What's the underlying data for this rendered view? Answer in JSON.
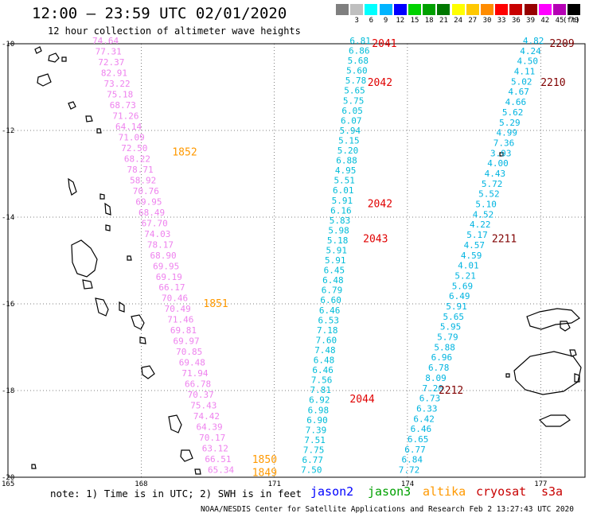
{
  "header": {
    "title": "12:00 – 23:59 UTC 02/01/2020",
    "subtitle": "12 hour collection of altimeter wave heights"
  },
  "legend": {
    "unit": "(ft)",
    "swatches": [
      {
        "label": "",
        "color": "#7f7f7f"
      },
      {
        "label": "3",
        "color": "#bfbfbf"
      },
      {
        "label": "6",
        "color": "#00ffff"
      },
      {
        "label": "9",
        "color": "#00b4ff"
      },
      {
        "label": "12",
        "color": "#0000ff"
      },
      {
        "label": "15",
        "color": "#00d200"
      },
      {
        "label": "18",
        "color": "#00a000"
      },
      {
        "label": "21",
        "color": "#007800"
      },
      {
        "label": "24",
        "color": "#ffff00"
      },
      {
        "label": "27",
        "color": "#ffc800"
      },
      {
        "label": "30",
        "color": "#ff8c00"
      },
      {
        "label": "33",
        "color": "#ff0000"
      },
      {
        "label": "36",
        "color": "#c80000"
      },
      {
        "label": "39",
        "color": "#960000"
      },
      {
        "label": "42",
        "color": "#ff00ff"
      },
      {
        "label": "45",
        "color": "#b400b4"
      },
      {
        "label": "70",
        "color": "#000000"
      }
    ]
  },
  "axes": {
    "lat_labels": [
      "-10",
      "-12",
      "-14",
      "-16",
      "-18",
      "-20"
    ],
    "lon_labels": [
      "165",
      "168",
      "171",
      "174",
      "177"
    ]
  },
  "colors": {
    "altika": "#ee82ee",
    "jason2": "#00bcd8",
    "cryosat": "#00b4e0",
    "time_altika": "#ff9900",
    "time_jason2": "#e00000",
    "time_cryosat": "#800000"
  },
  "tracks": {
    "altika": {
      "times": [
        {
          "t": "1852",
          "lat": -12.5,
          "lon": 168.7
        },
        {
          "t": "1851",
          "lat": -16.0,
          "lon": 169.4
        },
        {
          "t": "1850",
          "lat": -19.6,
          "lon": 170.5
        },
        {
          "t": "1849",
          "lat": -19.9,
          "lon": 170.5
        }
      ],
      "values": [
        "74.64",
        "77.31",
        "72.37",
        "82.91",
        "73.22",
        "75.18",
        "68.73",
        "71.26",
        "64.14",
        "71.09",
        "72.50",
        "68.22",
        "78.71",
        "58.92",
        "70.76",
        "69.95",
        "68.49",
        "67.70",
        "74.03",
        "78.17",
        "68.90",
        "69.95",
        "69.19",
        "66.17",
        "70.46",
        "70.49",
        "71.46",
        "69.81",
        "69.97",
        "70.85",
        "69.48",
        "71.94",
        "66.78",
        "70.37",
        "75.43",
        "74.42",
        "64.39",
        "70.17",
        "63.12",
        "66.51",
        "65.34"
      ]
    },
    "jason2": {
      "times": [
        {
          "t": "2041",
          "lat": -10.0,
          "lon": 173.2
        },
        {
          "t": "2042",
          "lat": -10.9,
          "lon": 173.1
        },
        {
          "t": "2042",
          "lat": -13.7,
          "lon": 173.1
        },
        {
          "t": "2043",
          "lat": -14.5,
          "lon": 173.0
        },
        {
          "t": "2044",
          "lat": -18.2,
          "lon": 172.7
        }
      ],
      "values": [
        "6.81",
        "6.86",
        "5.68",
        "5.60",
        "5.78",
        "5.65",
        "5.75",
        "6.05",
        "6.07",
        "5.94",
        "5.15",
        "5.20",
        "6.88",
        "4.95",
        "5.51",
        "6.01",
        "5.91",
        "6.16",
        "5.83",
        "5.98",
        "5.18",
        "5.91",
        "5.91",
        "6.45",
        "6.48",
        "6.79",
        "6.60",
        "6.46",
        "6.53",
        "7.18",
        "7.60",
        "7.48",
        "6.48",
        "6.46",
        "7.56",
        "7.81",
        "6.92",
        "6.98",
        "6.90",
        "7.39",
        "7.51",
        "7.75",
        "6.77",
        "7.50"
      ]
    },
    "cryosat": {
      "times": [
        {
          "t": "2209",
          "lat": -10.0,
          "lon": 177.2
        },
        {
          "t": "2210",
          "lat": -10.9,
          "lon": 177.0
        },
        {
          "t": "2211",
          "lat": -14.5,
          "lon": 175.9
        },
        {
          "t": "2212",
          "lat": -18.0,
          "lon": 174.7
        }
      ],
      "values": [
        "4.82",
        "4.24",
        "4.50",
        "4.11",
        "5.02",
        "4.67",
        "4.66",
        "5.62",
        "5.29",
        "4.99",
        "7.36",
        "3.93",
        "4.00",
        "4.43",
        "5.72",
        "5.52",
        "5.10",
        "4.52",
        "4.22",
        "5.17",
        "4.57",
        "4.59",
        "4.01",
        "5.21",
        "5.69",
        "6.49",
        "5.91",
        "5.65",
        "5.95",
        "5.79",
        "5.88",
        "6.96",
        "6.78",
        "8.09",
        "7.20",
        "6.73",
        "6.33",
        "6.42",
        "6.46",
        "6.65",
        "6.77",
        "6.84",
        "7.72"
      ]
    }
  },
  "note": "note: 1) Time is in UTC; 2) SWH is in feet",
  "satellites": [
    {
      "name": "jason2",
      "color": "#0000ff"
    },
    {
      "name": "jason3",
      "color": "#00a000"
    },
    {
      "name": "altika",
      "color": "#ff9900"
    },
    {
      "name": "cryosat",
      "color": "#c80000"
    },
    {
      "name": "s3a",
      "color": "#c80000"
    }
  ],
  "footer": "NOAA/NESDIS Center for Satellite Applications and Research   Feb  2 13:27:43 UTC 2020"
}
